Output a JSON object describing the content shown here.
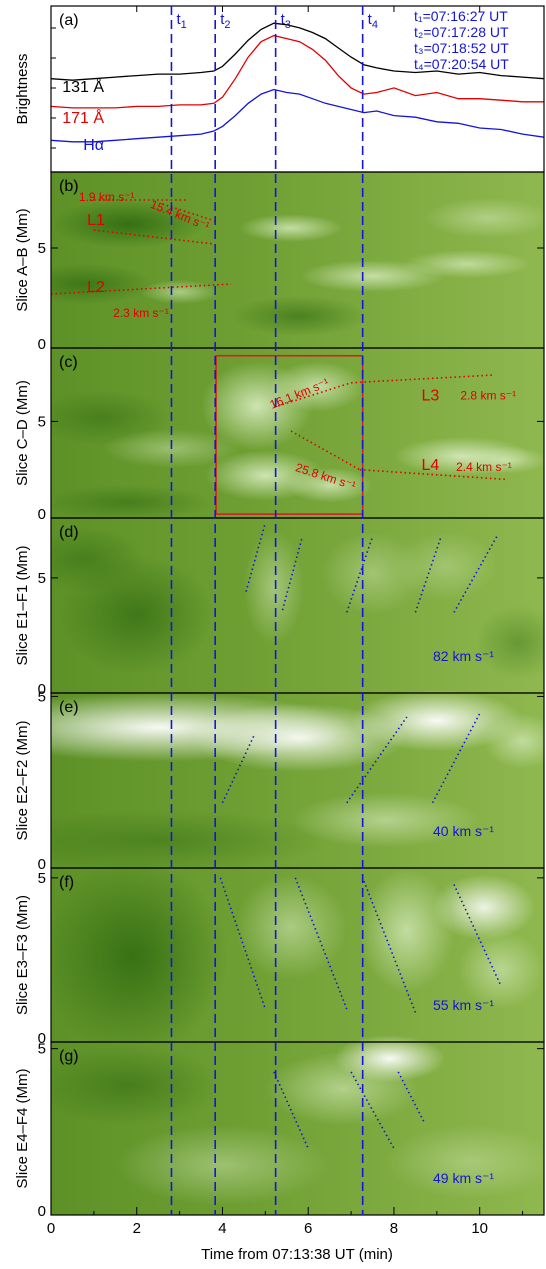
{
  "colors": {
    "black": "#000000",
    "red": "#e00000",
    "blue": "#1515d6",
    "box_red": "#d62020",
    "green_dark": "#2f6b10",
    "green_mid": "#78a838",
    "green_light": "#d8ecc0",
    "white": "#ffffff"
  },
  "x_axis": {
    "label": "Time from 07:13:38 UT (min)",
    "range": [
      0,
      11.5
    ],
    "ticks": [
      0,
      2,
      4,
      6,
      8,
      10
    ],
    "tick_labels": [
      "0",
      "2",
      "4",
      "6",
      "8",
      "10"
    ]
  },
  "time_marks": {
    "names": [
      "t1",
      "t2",
      "t3",
      "t4"
    ],
    "subs": [
      "1",
      "2",
      "3",
      "4"
    ],
    "values": [
      2.81,
      3.83,
      5.24,
      7.27
    ],
    "legend": [
      "t₁=07:16:27 UT",
      "t₂=07:17:28 UT",
      "t₃=07:18:52 UT",
      "t₄=07:20:54 UT"
    ]
  },
  "chart_data": [
    {
      "type": "line",
      "panel": "(a)",
      "ylabel": "Brightness",
      "x_range": [
        0,
        11.5
      ],
      "x": [
        0,
        0.5,
        1,
        1.5,
        2,
        2.5,
        3,
        3.5,
        3.8,
        4,
        4.3,
        4.6,
        4.9,
        5.2,
        5.5,
        5.8,
        6.1,
        6.4,
        6.7,
        7,
        7.3,
        7.6,
        8,
        8.5,
        9,
        9.5,
        10,
        10.5,
        11,
        11.5
      ],
      "series": [
        {
          "name": "131 Å",
          "color": "#000000",
          "values": [
            0.58,
            0.57,
            0.58,
            0.59,
            0.6,
            0.61,
            0.61,
            0.62,
            0.63,
            0.66,
            0.74,
            0.83,
            0.9,
            0.94,
            0.93,
            0.91,
            0.88,
            0.84,
            0.78,
            0.72,
            0.67,
            0.65,
            0.63,
            0.62,
            0.63,
            0.61,
            0.62,
            0.6,
            0.59,
            0.58
          ]
        },
        {
          "name": "171 Å",
          "color": "#e00000",
          "values": [
            0.4,
            0.39,
            0.39,
            0.39,
            0.4,
            0.4,
            0.41,
            0.41,
            0.42,
            0.46,
            0.58,
            0.72,
            0.82,
            0.86,
            0.84,
            0.82,
            0.77,
            0.7,
            0.6,
            0.52,
            0.48,
            0.49,
            0.52,
            0.47,
            0.49,
            0.45,
            0.45,
            0.44,
            0.43,
            0.43
          ]
        },
        {
          "name": "Hα",
          "color": "#1515d6",
          "values": [
            0.18,
            0.17,
            0.17,
            0.18,
            0.19,
            0.2,
            0.21,
            0.22,
            0.24,
            0.27,
            0.34,
            0.42,
            0.48,
            0.51,
            0.49,
            0.48,
            0.45,
            0.42,
            0.4,
            0.38,
            0.36,
            0.37,
            0.34,
            0.33,
            0.3,
            0.29,
            0.26,
            0.25,
            0.22,
            0.2
          ]
        }
      ]
    },
    {
      "type": "heatmap",
      "panel": "(b)",
      "ylabel": "Slice A–B (Mm)",
      "ylim": [
        0,
        8.8
      ],
      "yticks": [
        0,
        5
      ],
      "ytick_labels": [
        "0",
        "5"
      ],
      "segment_labels": [
        {
          "text": "L1",
          "x": 1.05,
          "y": 6.35
        },
        {
          "text": "L2",
          "x": 1.05,
          "y": 3.0
        }
      ],
      "speeds": [
        {
          "text": "1.9 km s⁻¹",
          "x": 1.3,
          "y": 7.5,
          "angle": 0
        },
        {
          "text": "15.4 km s⁻¹",
          "x": 3.0,
          "y": 6.6,
          "angle": 22
        },
        {
          "text": "2.3 km s⁻¹",
          "x": 2.1,
          "y": 1.7,
          "angle": 0
        }
      ],
      "fits": [
        {
          "color": "red",
          "x": [
            0.9,
            3.2
          ],
          "y": [
            7.4,
            7.4
          ]
        },
        {
          "color": "red",
          "x": [
            2.6,
            3.9
          ],
          "y": [
            7.2,
            6.3
          ]
        },
        {
          "color": "red",
          "x": [
            1.0,
            3.8
          ],
          "y": [
            5.9,
            5.2
          ]
        },
        {
          "color": "red",
          "x": [
            0.0,
            4.2
          ],
          "y": [
            2.7,
            3.2
          ]
        }
      ],
      "blobs": [
        {
          "x": 1.8,
          "y": 6.2,
          "w": 1.8,
          "h": 1.2,
          "tone": "dark",
          "a": 0.9
        },
        {
          "x": 0.8,
          "y": 3.2,
          "w": 1.6,
          "h": 1.0,
          "tone": "dark",
          "a": 0.7
        },
        {
          "x": 3.0,
          "y": 2.8,
          "w": 0.9,
          "h": 0.6,
          "tone": "light",
          "a": 0.6
        },
        {
          "x": 5.6,
          "y": 6.0,
          "w": 1.2,
          "h": 0.7,
          "tone": "light",
          "a": 0.8
        },
        {
          "x": 7.5,
          "y": 3.6,
          "w": 1.7,
          "h": 0.8,
          "tone": "light",
          "a": 0.8
        },
        {
          "x": 9.7,
          "y": 4.2,
          "w": 1.5,
          "h": 0.7,
          "tone": "light",
          "a": 0.7
        },
        {
          "x": 10.2,
          "y": 6.5,
          "w": 1.5,
          "h": 1.0,
          "tone": "light",
          "a": 0.5
        },
        {
          "x": 5.8,
          "y": 1.6,
          "w": 1.6,
          "h": 1.0,
          "tone": "dark",
          "a": 0.6
        }
      ]
    },
    {
      "type": "heatmap",
      "panel": "(c)",
      "ylabel": "Slice C–D (Mm)",
      "ylim": [
        0,
        8.8
      ],
      "yticks": [
        0,
        5
      ],
      "ytick_labels": [
        "0",
        "5"
      ],
      "segment_labels": [
        {
          "text": "L3",
          "x": 8.85,
          "y": 6.3
        },
        {
          "text": "L4",
          "x": 8.85,
          "y": 2.7
        }
      ],
      "speeds": [
        {
          "text": "16.1 km s⁻¹",
          "x": 5.8,
          "y": 6.4,
          "angle": -22
        },
        {
          "text": "2.8 km s⁻¹",
          "x": 10.2,
          "y": 6.3,
          "angle": 0
        },
        {
          "text": "25.8 km s⁻¹",
          "x": 6.4,
          "y": 2.1,
          "angle": 18
        },
        {
          "text": "2.4 km s⁻¹",
          "x": 10.1,
          "y": 2.6,
          "angle": 0
        }
      ],
      "fits": [
        {
          "color": "red",
          "x": [
            5.3,
            7.0
          ],
          "y": [
            5.8,
            7.0
          ]
        },
        {
          "color": "red",
          "x": [
            7.0,
            10.3
          ],
          "y": [
            7.0,
            7.4
          ]
        },
        {
          "color": "red",
          "x": [
            5.6,
            7.2
          ],
          "y": [
            4.5,
            2.5
          ]
        },
        {
          "color": "red",
          "x": [
            7.2,
            10.6
          ],
          "y": [
            2.5,
            2.0
          ]
        }
      ],
      "box": {
        "x0": 3.85,
        "x1": 7.27,
        "y0": 0.2,
        "y1": 8.4
      },
      "blobs": [
        {
          "x": 4.8,
          "y": 5.8,
          "w": 1.3,
          "h": 2.3,
          "tone": "light",
          "a": 0.9
        },
        {
          "x": 6.2,
          "y": 6.8,
          "w": 1.1,
          "h": 1.3,
          "tone": "light",
          "a": 0.8
        },
        {
          "x": 5.0,
          "y": 2.2,
          "w": 1.4,
          "h": 1.3,
          "tone": "light",
          "a": 0.9
        },
        {
          "x": 6.5,
          "y": 1.7,
          "w": 1.0,
          "h": 0.9,
          "tone": "light",
          "a": 0.8
        },
        {
          "x": 9.6,
          "y": 3.2,
          "w": 1.6,
          "h": 1.0,
          "tone": "light",
          "a": 0.9
        },
        {
          "x": 10.6,
          "y": 3.0,
          "w": 1.0,
          "h": 0.7,
          "tone": "light",
          "a": 0.7
        },
        {
          "x": 2.8,
          "y": 3.6,
          "w": 1.6,
          "h": 1.0,
          "tone": "light",
          "a": 0.45
        },
        {
          "x": 1.2,
          "y": 5.2,
          "w": 1.6,
          "h": 1.4,
          "tone": "dark",
          "a": 0.5
        },
        {
          "x": 1.8,
          "y": 0.8,
          "w": 2.0,
          "h": 0.9,
          "tone": "dark",
          "a": 0.55
        }
      ]
    },
    {
      "type": "heatmap",
      "panel": "(d)",
      "ylabel": "Slice E1–F1 (Mm)",
      "ylim": [
        0,
        7.6
      ],
      "yticks": [
        0,
        5
      ],
      "ytick_labels": [
        "0",
        "5"
      ],
      "speed_label": "82 km s⁻¹",
      "fits": [
        {
          "color": "blue",
          "x": [
            4.55,
            5.0
          ],
          "y": [
            4.4,
            7.4
          ]
        },
        {
          "color": "blue",
          "x": [
            5.4,
            5.85
          ],
          "y": [
            3.6,
            6.7
          ]
        },
        {
          "color": "blue",
          "x": [
            6.9,
            7.5
          ],
          "y": [
            3.5,
            6.8
          ]
        },
        {
          "color": "blue",
          "x": [
            8.5,
            9.1
          ],
          "y": [
            3.5,
            6.8
          ]
        },
        {
          "color": "blue",
          "x": [
            9.4,
            10.4
          ],
          "y": [
            3.5,
            6.8
          ]
        }
      ],
      "blobs": [
        {
          "x": 2.0,
          "y": 3.4,
          "w": 1.8,
          "h": 2.6,
          "tone": "dark",
          "a": 0.7
        },
        {
          "x": 0.8,
          "y": 5.8,
          "w": 1.4,
          "h": 1.4,
          "tone": "dark",
          "a": 0.5
        },
        {
          "x": 5.2,
          "y": 4.6,
          "w": 0.7,
          "h": 2.5,
          "tone": "light",
          "a": 0.5
        },
        {
          "x": 7.5,
          "y": 5.2,
          "w": 1.2,
          "h": 1.8,
          "tone": "light",
          "a": 0.4
        },
        {
          "x": 9.2,
          "y": 5.5,
          "w": 1.2,
          "h": 1.5,
          "tone": "light",
          "a": 0.35
        },
        {
          "x": 10.9,
          "y": 2.2,
          "w": 1.0,
          "h": 1.6,
          "tone": "dark",
          "a": 0.4
        }
      ]
    },
    {
      "type": "heatmap",
      "panel": "(e)",
      "ylabel": "Slice E2–F2 (Mm)",
      "ylim": [
        0,
        5.1
      ],
      "yticks": [
        0,
        5
      ],
      "ytick_labels": [
        "0",
        "5"
      ],
      "speed_label": "40 km s⁻¹",
      "fits": [
        {
          "color": "blue",
          "x": [
            4.0,
            4.75
          ],
          "y": [
            1.9,
            3.9
          ]
        },
        {
          "color": "blue",
          "x": [
            6.9,
            8.3
          ],
          "y": [
            1.9,
            4.4
          ]
        },
        {
          "color": "blue",
          "x": [
            8.9,
            10.0
          ],
          "y": [
            1.9,
            4.5
          ]
        }
      ],
      "blobs": [
        {
          "x": 2.5,
          "y": 4.1,
          "w": 4.5,
          "h": 1.0,
          "tone": "white",
          "a": 0.95
        },
        {
          "x": 5.8,
          "y": 3.8,
          "w": 2.5,
          "h": 1.0,
          "tone": "white",
          "a": 0.9
        },
        {
          "x": 9.0,
          "y": 4.3,
          "w": 2.0,
          "h": 0.9,
          "tone": "white",
          "a": 0.95
        },
        {
          "x": 11.0,
          "y": 3.7,
          "w": 0.9,
          "h": 0.8,
          "tone": "light",
          "a": 0.7
        },
        {
          "x": 2.5,
          "y": 0.8,
          "w": 4.0,
          "h": 0.9,
          "tone": "dark",
          "a": 0.45
        },
        {
          "x": 7.8,
          "y": 1.4,
          "w": 2.2,
          "h": 0.8,
          "tone": "light",
          "a": 0.6
        }
      ]
    },
    {
      "type": "heatmap",
      "panel": "(f)",
      "ylabel": "Slice E3–F3 (Mm)",
      "ylim": [
        0,
        5.3
      ],
      "yticks": [
        0,
        5
      ],
      "ytick_labels": [
        "0",
        "5"
      ],
      "speed_label": "55 km s⁻¹",
      "fits": [
        {
          "color": "blue",
          "x": [
            3.95,
            5.0
          ],
          "y": [
            5.0,
            1.0
          ]
        },
        {
          "color": "blue",
          "x": [
            5.7,
            6.9
          ],
          "y": [
            5.0,
            1.0
          ]
        },
        {
          "color": "blue",
          "x": [
            7.3,
            8.5
          ],
          "y": [
            4.9,
            0.9
          ]
        },
        {
          "color": "blue",
          "x": [
            9.4,
            10.5
          ],
          "y": [
            4.8,
            1.7
          ]
        }
      ],
      "blobs": [
        {
          "x": 1.9,
          "y": 2.6,
          "w": 2.2,
          "h": 3.0,
          "tone": "dark",
          "a": 0.85
        },
        {
          "x": 5.6,
          "y": 3.5,
          "w": 1.3,
          "h": 1.6,
          "tone": "light",
          "a": 0.55
        },
        {
          "x": 8.3,
          "y": 3.4,
          "w": 1.1,
          "h": 1.9,
          "tone": "light",
          "a": 0.75
        },
        {
          "x": 10.1,
          "y": 4.1,
          "w": 1.2,
          "h": 1.0,
          "tone": "white",
          "a": 0.85
        },
        {
          "x": 10.5,
          "y": 2.2,
          "w": 1.0,
          "h": 1.2,
          "tone": "light",
          "a": 0.6
        }
      ]
    },
    {
      "type": "heatmap",
      "panel": "(g)",
      "ylabel": "Slice E4–F4 (Mm)",
      "ylim": [
        0,
        5.2
      ],
      "yticks": [
        0,
        5
      ],
      "ytick_labels": [
        "0",
        "5"
      ],
      "speed_label": "49 km s⁻¹",
      "fits": [
        {
          "color": "blue",
          "x": [
            5.2,
            6.0
          ],
          "y": [
            4.3,
            2.0
          ]
        },
        {
          "color": "blue",
          "x": [
            7.0,
            8.0
          ],
          "y": [
            4.3,
            2.0
          ]
        },
        {
          "color": "blue",
          "x": [
            8.1,
            8.7
          ],
          "y": [
            4.3,
            2.8
          ]
        }
      ],
      "blobs": [
        {
          "x": 1.8,
          "y": 3.9,
          "w": 2.2,
          "h": 1.2,
          "tone": "dark",
          "a": 0.55
        },
        {
          "x": 7.9,
          "y": 4.7,
          "w": 1.3,
          "h": 0.7,
          "tone": "white",
          "a": 0.95
        },
        {
          "x": 6.8,
          "y": 3.8,
          "w": 1.8,
          "h": 1.1,
          "tone": "light",
          "a": 0.6
        },
        {
          "x": 4.0,
          "y": 1.5,
          "w": 2.5,
          "h": 1.2,
          "tone": "light",
          "a": 0.45
        },
        {
          "x": 9.8,
          "y": 1.6,
          "w": 2.0,
          "h": 1.1,
          "tone": "light",
          "a": 0.4
        }
      ]
    }
  ]
}
